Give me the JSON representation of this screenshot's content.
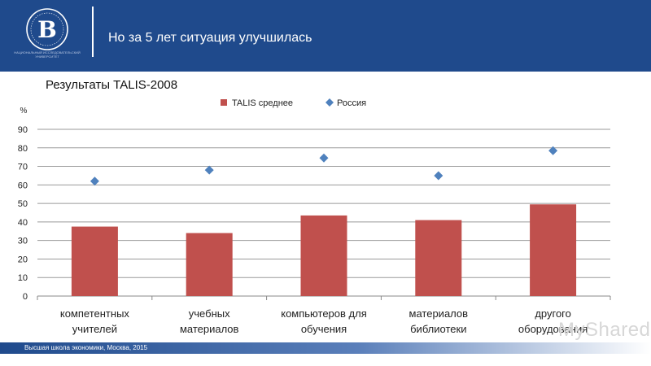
{
  "header": {
    "title": "Но за 5 лет ситуация улучшилась",
    "logo_caption": "НАЦИОНАЛЬНЫЙ ИССЛЕДОВАТЕЛЬСКИЙ УНИВЕРСИТЕТ"
  },
  "footer": {
    "text": "Высшая школа экономики, Москва, 2015"
  },
  "watermark": "MyShared",
  "colors": {
    "header_bg": "#1f4a8c",
    "bar": "#c0504d",
    "marker": "#4f81bd"
  },
  "chart_data": {
    "type": "bar",
    "title": "Результаты TALIS-2008",
    "ylabel": "%",
    "xlabel": "",
    "ylim": [
      0,
      90
    ],
    "yticks": [
      0,
      10,
      20,
      30,
      40,
      50,
      60,
      70,
      80,
      90
    ],
    "grid": true,
    "legend_position": "top",
    "categories": [
      [
        "компетентных",
        "учителей"
      ],
      [
        "учебных",
        "материалов"
      ],
      [
        "компьютеров для",
        "обучения"
      ],
      [
        "материалов",
        "библиотеки"
      ],
      [
        "другого",
        "оборудования"
      ]
    ],
    "series": [
      {
        "name": "TALIS среднее",
        "kind": "bar",
        "values": [
          37.5,
          34,
          43.5,
          41,
          49.5
        ]
      },
      {
        "name": "Россия",
        "kind": "marker",
        "values": [
          62,
          68,
          74.5,
          65,
          78.5
        ]
      }
    ]
  }
}
